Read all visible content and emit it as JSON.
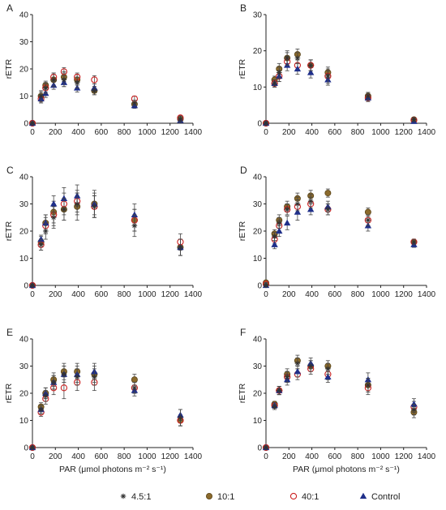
{
  "figure": {
    "legend_placement": "bottom",
    "legend": [
      {
        "label": "4.5:1",
        "marker": "star",
        "color": "#333333"
      },
      {
        "label": "10:1",
        "marker": "circle-filled",
        "color": "#8b6a2c",
        "edge": "#5a4418"
      },
      {
        "label": "40:1",
        "marker": "circle-open",
        "color": "#cc2222"
      },
      {
        "label": "Control",
        "marker": "triangle",
        "color": "#1f2f8a"
      }
    ]
  },
  "chart_data": [
    {
      "panel": "A",
      "type": "scatter",
      "ylabel": "rETR",
      "xlabel": "",
      "xlim": [
        0,
        1400
      ],
      "ylim": [
        0,
        40
      ],
      "xticks": [
        0,
        200,
        400,
        600,
        800,
        1000,
        1200,
        1400
      ],
      "yticks": [
        0,
        10,
        20,
        30,
        40
      ],
      "x": [
        0,
        75,
        115,
        185,
        275,
        390,
        540,
        890,
        1290
      ],
      "series": [
        {
          "name": "4.5:1",
          "y": [
            0,
            10,
            13,
            16,
            16,
            15,
            12,
            7.5,
            1.5
          ],
          "err": [
            0.5,
            2,
            2,
            2.5,
            2.5,
            2,
            1.5,
            1,
            1
          ]
        },
        {
          "name": "10:1",
          "y": [
            0,
            10,
            14,
            16,
            17,
            16,
            12,
            7,
            1.5
          ],
          "err": [
            0.5,
            1.5,
            1.5,
            2,
            2,
            2,
            1.5,
            1,
            0.8
          ]
        },
        {
          "name": "40:1",
          "y": [
            0,
            9,
            13,
            17,
            19,
            17,
            16,
            9,
            2
          ],
          "err": [
            0.5,
            1.5,
            1.5,
            1.5,
            1.5,
            1.5,
            1.5,
            1,
            0.8
          ]
        },
        {
          "name": "Control",
          "y": [
            0,
            9,
            11,
            14,
            15,
            13,
            13,
            6.5,
            1
          ],
          "err": [
            0.5,
            1.5,
            1.5,
            1.5,
            1.5,
            1.5,
            1.5,
            1,
            0.8
          ]
        }
      ]
    },
    {
      "panel": "B",
      "type": "scatter",
      "ylabel": "rETR",
      "xlabel": "",
      "xlim": [
        0,
        1400
      ],
      "ylim": [
        0,
        30
      ],
      "xticks": [
        0,
        200,
        400,
        600,
        800,
        1000,
        1200,
        1400
      ],
      "yticks": [
        0,
        10,
        20,
        30
      ],
      "x": [
        0,
        75,
        115,
        185,
        275,
        390,
        540,
        890,
        1290
      ],
      "series": [
        {
          "name": "4.5:1",
          "y": [
            0,
            11,
            14,
            18,
            18,
            16,
            13,
            7.5,
            1
          ],
          "err": [
            0.5,
            1,
            1.5,
            2,
            1.5,
            1.5,
            2,
            1,
            0.5
          ]
        },
        {
          "name": "10:1",
          "y": [
            0,
            12,
            15,
            18,
            19,
            16,
            14,
            7.5,
            1
          ],
          "err": [
            0.5,
            1,
            1.5,
            1.5,
            1.5,
            1.5,
            1.5,
            1,
            0.5
          ]
        },
        {
          "name": "40:1",
          "y": [
            0,
            11,
            13,
            17,
            16,
            16,
            13,
            7,
            0.8
          ],
          "err": [
            0.5,
            1,
            1.5,
            1.5,
            1.5,
            1.5,
            1.5,
            1,
            0.5
          ]
        },
        {
          "name": "Control",
          "y": [
            0,
            11,
            13,
            16,
            15,
            14,
            12,
            7,
            0.5
          ],
          "err": [
            0.5,
            1,
            1.5,
            1.5,
            1.5,
            1.5,
            1.5,
            1,
            0.5
          ]
        }
      ]
    },
    {
      "panel": "C",
      "type": "scatter",
      "ylabel": "rETR",
      "xlabel": "",
      "xlim": [
        0,
        1400
      ],
      "ylim": [
        0,
        40
      ],
      "xticks": [
        0,
        200,
        400,
        600,
        800,
        1000,
        1200,
        1400
      ],
      "yticks": [
        0,
        10,
        20,
        30,
        40
      ],
      "x": [
        0,
        75,
        115,
        185,
        275,
        390,
        540,
        890,
        1290
      ],
      "series": [
        {
          "name": "4.5:1",
          "y": [
            0,
            15,
            20,
            25,
            28,
            30,
            29,
            22,
            14
          ],
          "err": [
            0.5,
            2,
            3,
            4,
            4,
            4,
            4,
            4,
            3
          ]
        },
        {
          "name": "10:1",
          "y": [
            0,
            16,
            23,
            27,
            28,
            29,
            30,
            24,
            14
          ],
          "err": [
            0.5,
            2,
            3,
            4,
            4,
            5,
            5,
            4,
            3
          ]
        },
        {
          "name": "40:1",
          "y": [
            0,
            15,
            22,
            26,
            30,
            31,
            29,
            24,
            16
          ],
          "err": [
            0.5,
            2,
            3,
            4,
            4,
            4,
            4,
            4,
            3
          ]
        },
        {
          "name": "Control",
          "y": [
            0,
            17,
            23,
            30,
            32,
            33,
            30,
            26,
            14
          ],
          "err": [
            0.5,
            1.5,
            3,
            3,
            4,
            4,
            4,
            4,
            3
          ]
        }
      ]
    },
    {
      "panel": "D",
      "type": "scatter",
      "ylabel": "rETR",
      "xlabel": "",
      "xlim": [
        0,
        1400
      ],
      "ylim": [
        0,
        40
      ],
      "xticks": [
        0,
        200,
        400,
        600,
        800,
        1000,
        1200,
        1400
      ],
      "yticks": [
        0,
        10,
        20,
        30,
        40
      ],
      "x": [
        0,
        75,
        115,
        185,
        275,
        390,
        540,
        890,
        1290
      ],
      "series": [
        {
          "name": "4.5:1",
          "y": [
            0,
            18,
            23,
            28,
            30,
            31,
            28,
            24,
            16
          ],
          "err": [
            0.5,
            1.5,
            2,
            2,
            2.5,
            2.5,
            2,
            2,
            1
          ]
        },
        {
          "name": "10:1",
          "y": [
            1,
            19,
            24,
            29,
            32,
            33,
            34,
            27,
            16
          ],
          "err": [
            0.5,
            1.5,
            2,
            2,
            2,
            2,
            1.5,
            1.5,
            1
          ]
        },
        {
          "name": "40:1",
          "y": [
            0.5,
            17,
            22,
            28,
            29,
            30,
            28,
            24,
            16
          ],
          "err": [
            0.5,
            1.5,
            2,
            2,
            2.5,
            2.5,
            2,
            2,
            1
          ]
        },
        {
          "name": "Control",
          "y": [
            0,
            15,
            20,
            23,
            27,
            28,
            29,
            22,
            15
          ],
          "err": [
            0.5,
            1.5,
            2,
            2.5,
            3,
            2,
            2,
            2,
            1
          ]
        }
      ]
    },
    {
      "panel": "E",
      "type": "scatter",
      "ylabel": "rETR",
      "xlabel": "PAR (μmol photons m⁻² s⁻¹)",
      "xlim": [
        0,
        1400
      ],
      "ylim": [
        0,
        40
      ],
      "xticks": [
        0,
        200,
        400,
        600,
        800,
        1000,
        1200,
        1400
      ],
      "yticks": [
        0,
        10,
        20,
        30,
        40
      ],
      "x": [
        0,
        75,
        115,
        185,
        275,
        390,
        540,
        890,
        1290
      ],
      "series": [
        {
          "name": "4.5:1",
          "y": [
            0,
            14,
            19,
            24,
            27,
            26,
            26,
            22,
            11
          ],
          "err": [
            0.5,
            1.5,
            2,
            2.5,
            3,
            3,
            3,
            2,
            3
          ]
        },
        {
          "name": "10:1",
          "y": [
            0,
            15,
            20,
            25,
            28,
            28,
            27,
            25,
            10
          ],
          "err": [
            0.5,
            1.5,
            2,
            2.5,
            3,
            3,
            3,
            2,
            2
          ]
        },
        {
          "name": "40:1",
          "y": [
            0,
            13,
            18,
            22,
            22,
            24,
            24,
            22,
            10
          ],
          "err": [
            0.5,
            1.5,
            2,
            2.5,
            4,
            3,
            3,
            2,
            2
          ]
        },
        {
          "name": "Control",
          "y": [
            0,
            14,
            20,
            24,
            27,
            27,
            28,
            21,
            12
          ],
          "err": [
            0.5,
            1.5,
            2,
            2.5,
            3,
            3,
            3,
            2,
            2
          ]
        }
      ]
    },
    {
      "panel": "F",
      "type": "scatter",
      "ylabel": "rETR",
      "xlabel": "PAR (μmol photons m⁻² s⁻¹)",
      "xlim": [
        0,
        1400
      ],
      "ylim": [
        0,
        40
      ],
      "xticks": [
        0,
        200,
        400,
        600,
        800,
        1000,
        1200,
        1400
      ],
      "yticks": [
        0,
        10,
        20,
        30,
        40
      ],
      "x": [
        0,
        75,
        115,
        185,
        275,
        390,
        540,
        890,
        1290
      ],
      "series": [
        {
          "name": "4.5:1",
          "y": [
            0,
            15,
            21,
            26,
            31,
            30,
            29,
            23,
            14
          ],
          "err": [
            0.5,
            1,
            1.5,
            2,
            2,
            2,
            2,
            2.5,
            2
          ]
        },
        {
          "name": "10:1",
          "y": [
            0,
            16,
            21,
            27,
            32,
            30,
            30,
            23,
            13
          ],
          "err": [
            0.5,
            1,
            1.5,
            2,
            2,
            2,
            2,
            2.5,
            2
          ]
        },
        {
          "name": "40:1",
          "y": [
            0,
            15.5,
            21,
            26,
            27,
            29,
            27,
            22,
            15
          ],
          "err": [
            0.5,
            1,
            1.5,
            2,
            2,
            2,
            2,
            2.5,
            2
          ]
        },
        {
          "name": "Control",
          "y": [
            0,
            15.5,
            21,
            25,
            28,
            31,
            26,
            25,
            16
          ],
          "err": [
            0.5,
            1,
            1.5,
            2,
            2,
            2,
            2,
            2.5,
            2
          ]
        }
      ]
    }
  ]
}
